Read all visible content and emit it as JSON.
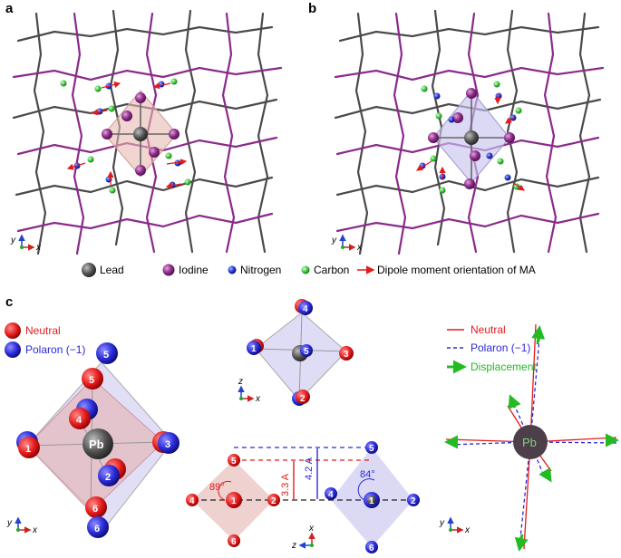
{
  "panels": {
    "a": "a",
    "b": "b",
    "c": "c"
  },
  "legend": {
    "lead": "Lead",
    "iodine": "Iodine",
    "nitrogen": "Nitrogen",
    "carbon": "Carbon",
    "dipole": "Dipole moment orientation of MA"
  },
  "panel_c": {
    "left_legend": {
      "neutral": "Neutral",
      "polaron": "Polaron (−1)"
    },
    "right_legend": {
      "neutral": "Neutral",
      "polaron": "Polaron (−1)",
      "displacement": "Displacement"
    },
    "center_atom": "Pb",
    "right_atom": "Pb",
    "labels": [
      "1",
      "2",
      "3",
      "4",
      "5",
      "6"
    ],
    "dist_neutral": "3.3 A",
    "dist_polaron": "4.2 A",
    "angle_neutral": "89°",
    "angle_polaron": "84°"
  },
  "axes": {
    "x": "x",
    "y": "y",
    "z": "z"
  },
  "colors": {
    "lattice_gray": "#4a4a4a",
    "lattice_purple": "#8a2a8a",
    "neutral_red": "#e31b1b",
    "polaron_blue": "#2a2ad8",
    "displacement_green": "#22bb22",
    "lead_gray": "#555555",
    "iodine_purple": "#8b2c87"
  }
}
